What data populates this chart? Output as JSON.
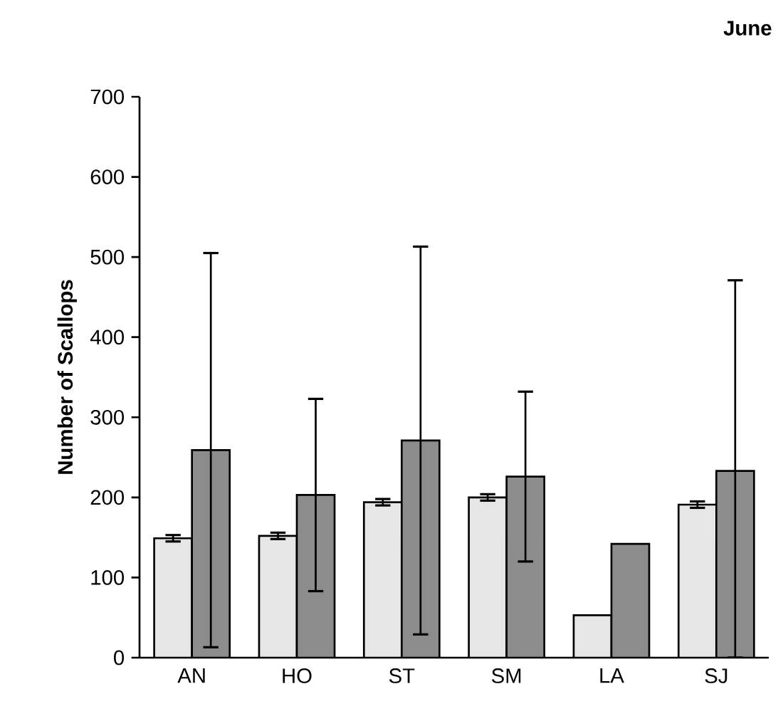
{
  "chart_data": {
    "type": "bar",
    "title": "June",
    "ylabel": "Number of Scallops",
    "categories": [
      "AN",
      "HO",
      "ST",
      "SM",
      "LA",
      "SJ"
    ],
    "series": [
      {
        "color": "#e6e6e6",
        "values": [
          149,
          152,
          194,
          200,
          53,
          191
        ],
        "errors": [
          4,
          4,
          4,
          4,
          null,
          4
        ]
      },
      {
        "color": "#8c8c8c",
        "values": [
          259,
          203,
          271,
          226,
          142,
          233
        ],
        "errors": [
          246,
          120,
          242,
          106,
          null,
          [
            0,
            471
          ]
        ]
      }
    ],
    "ylim": [
      0,
      700
    ],
    "yticks": [
      0,
      100,
      200,
      300,
      400,
      500,
      600,
      700
    ]
  }
}
